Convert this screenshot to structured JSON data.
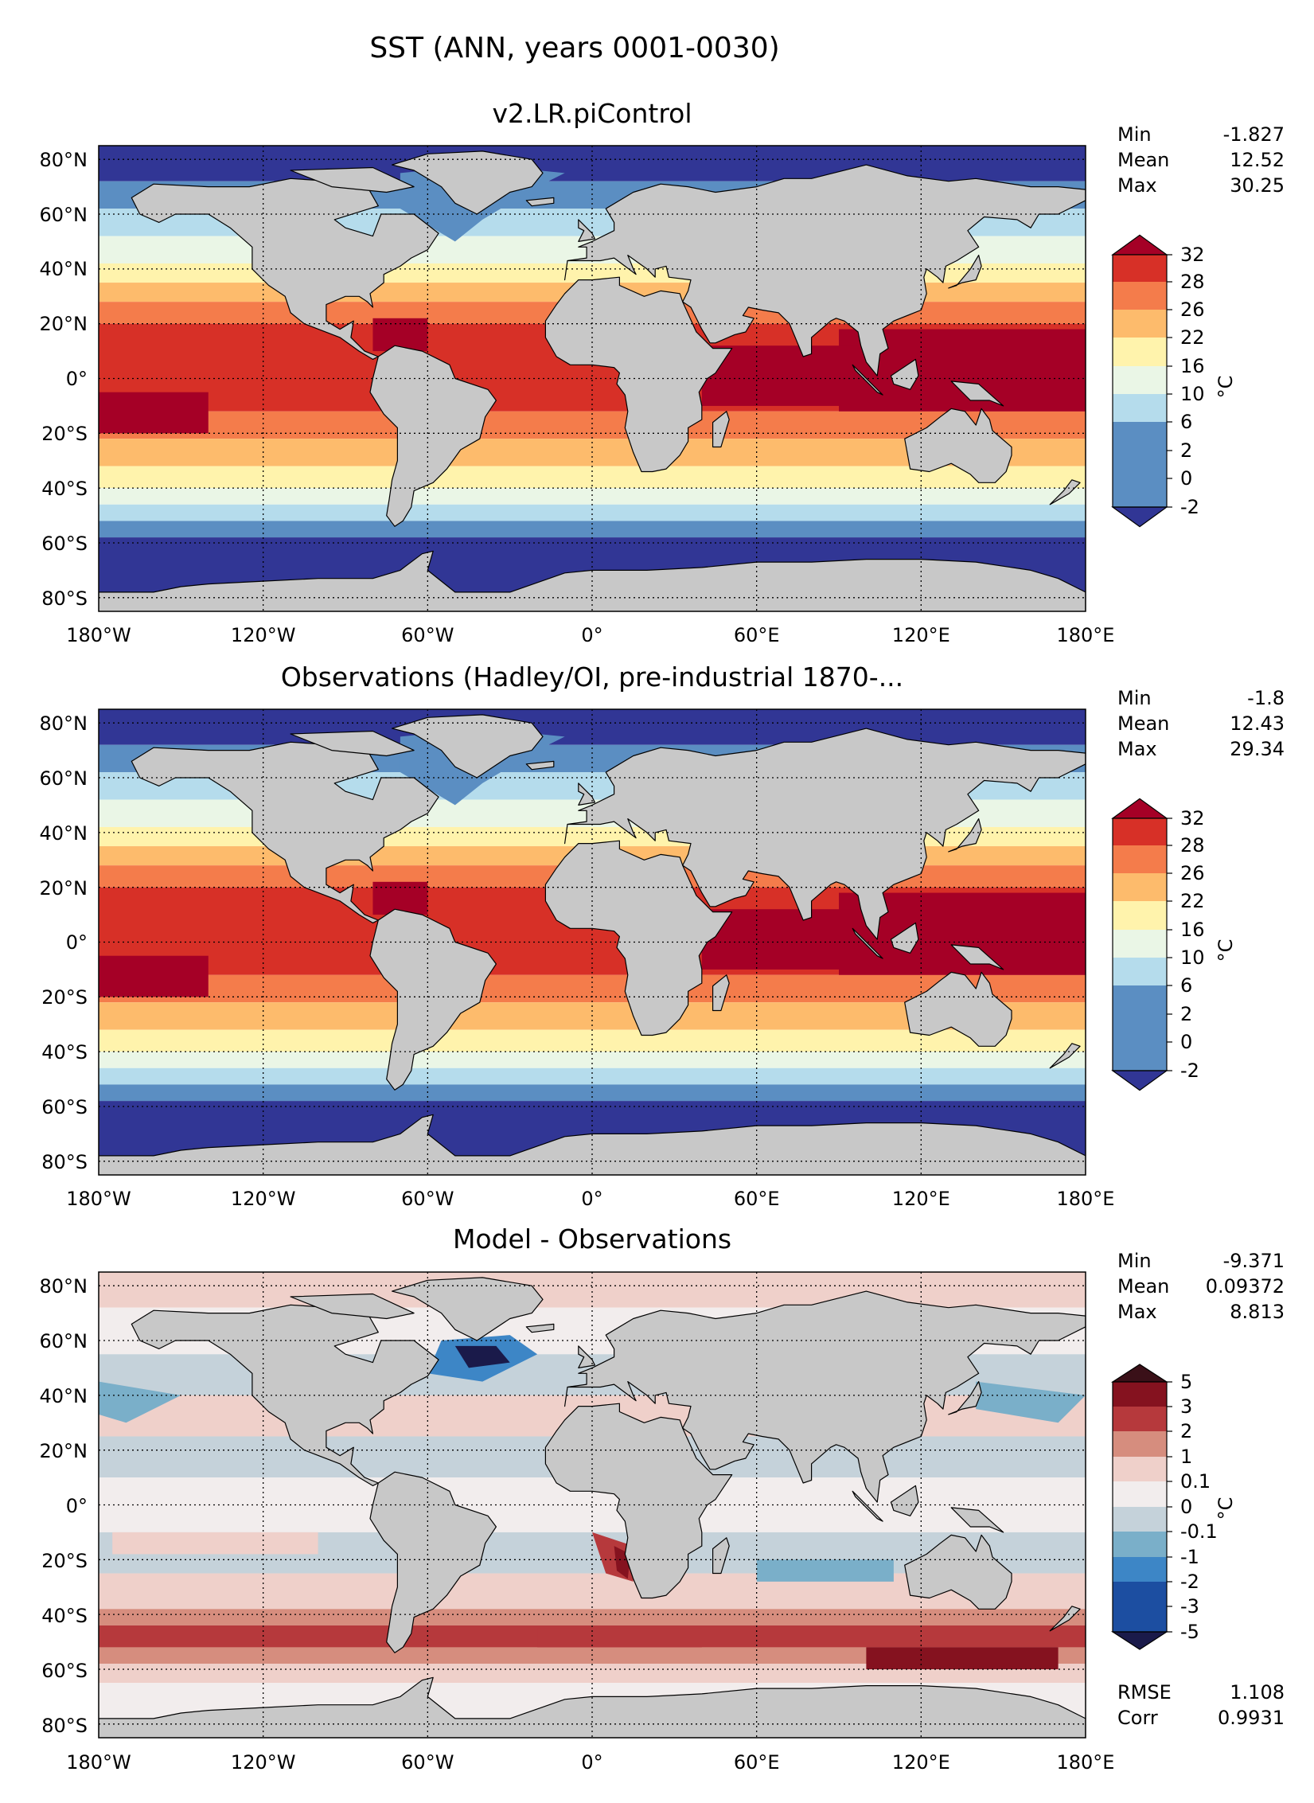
{
  "suptitle": "SST (ANN, years 0001-0030)",
  "colors": {
    "land": "#c8c8c8",
    "abs_levels": [
      "#313695",
      "#5b8ec2",
      "#b5dcec",
      "#eaf6e6",
      "#fff3ac",
      "#fdbb6c",
      "#f47c4b",
      "#d73027",
      "#a50026"
    ],
    "diff_levels": [
      "#1a1a4a",
      "#1c4ea1",
      "#3d86c6",
      "#7aafc9",
      "#c5d2da",
      "#f2eded",
      "#efd0ca",
      "#d68d7e",
      "#b6393c",
      "#85121f",
      "#3a1018"
    ]
  },
  "chart_data": [
    {
      "type": "heatmap",
      "title": "v2.LR.piControl",
      "x_ticks": [
        "180°W",
        "120°W",
        "60°W",
        "0°",
        "60°E",
        "120°E",
        "180°E"
      ],
      "y_ticks": [
        "80°N",
        "60°N",
        "40°N",
        "20°N",
        "0°",
        "20°S",
        "40°S",
        "60°S",
        "80°S"
      ],
      "grid": true,
      "stats": [
        {
          "label": "Min",
          "value": "-1.827"
        },
        {
          "label": "Mean",
          "value": "12.52"
        },
        {
          "label": "Max",
          "value": "30.25"
        }
      ],
      "colorbar": {
        "ticks": [
          "32",
          "28",
          "26",
          "22",
          "16",
          "10",
          "6",
          "2",
          "0",
          "-2"
        ],
        "unit": "°C",
        "extend": "both"
      }
    },
    {
      "type": "heatmap",
      "title": "Observations (Hadley/OI, pre-industrial 1870-...",
      "x_ticks": [
        "180°W",
        "120°W",
        "60°W",
        "0°",
        "60°E",
        "120°E",
        "180°E"
      ],
      "y_ticks": [
        "80°N",
        "60°N",
        "40°N",
        "20°N",
        "0°",
        "20°S",
        "40°S",
        "60°S",
        "80°S"
      ],
      "grid": true,
      "stats": [
        {
          "label": "Min",
          "value": "-1.8"
        },
        {
          "label": "Mean",
          "value": "12.43"
        },
        {
          "label": "Max",
          "value": "29.34"
        }
      ],
      "colorbar": {
        "ticks": [
          "32",
          "28",
          "26",
          "22",
          "16",
          "10",
          "6",
          "2",
          "0",
          "-2"
        ],
        "unit": "°C",
        "extend": "both"
      }
    },
    {
      "type": "heatmap",
      "title": "Model - Observations",
      "x_ticks": [
        "180°W",
        "120°W",
        "60°W",
        "0°",
        "60°E",
        "120°E",
        "180°E"
      ],
      "y_ticks": [
        "80°N",
        "60°N",
        "40°N",
        "20°N",
        "0°",
        "20°S",
        "40°S",
        "60°S",
        "80°S"
      ],
      "grid": true,
      "stats": [
        {
          "label": "Min",
          "value": "-9.371"
        },
        {
          "label": "Mean",
          "value": "0.09372"
        },
        {
          "label": "Max",
          "value": "8.813"
        }
      ],
      "extra_stats": [
        {
          "label": "RMSE",
          "value": "1.108"
        },
        {
          "label": "Corr",
          "value": "0.9931"
        }
      ],
      "colorbar": {
        "ticks": [
          "5",
          "3",
          "2",
          "1",
          "0.1",
          "0",
          "-0.1",
          "-1",
          "-2",
          "-3",
          "-5"
        ],
        "unit": "°C",
        "extend": "both"
      }
    }
  ]
}
